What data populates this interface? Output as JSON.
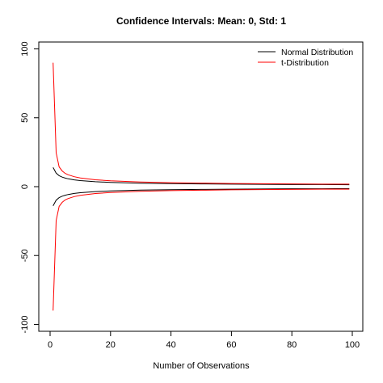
{
  "chart_data": {
    "type": "line",
    "title": "Confidence Intervals: Mean: 0, Std: 1",
    "xlabel": "Number of Observations",
    "ylabel": "",
    "xlim": [
      0,
      100
    ],
    "ylim": [
      -105,
      105
    ],
    "x_ticks": [
      0,
      20,
      40,
      60,
      80,
      100
    ],
    "y_ticks": [
      -100,
      -50,
      0,
      50,
      100
    ],
    "legend": {
      "placement": "top-right",
      "entries": [
        {
          "label": "Normal Distribution",
          "color": "#000000"
        },
        {
          "label": "t-Distribution",
          "color": "#ff0000"
        }
      ]
    },
    "x": [
      1,
      2,
      3,
      4,
      5,
      6,
      8,
      10,
      15,
      20,
      30,
      40,
      50,
      60,
      70,
      80,
      90,
      99
    ],
    "series": [
      {
        "name": "Normal Distribution upper",
        "color": "#000000",
        "values": [
          13.9,
          9.8,
          8.0,
          6.9,
          6.2,
          5.7,
          4.9,
          4.4,
          3.6,
          3.1,
          2.5,
          2.2,
          2.0,
          1.8,
          1.7,
          1.5,
          1.5,
          1.4
        ]
      },
      {
        "name": "Normal Distribution lower",
        "color": "#000000",
        "values": [
          -13.9,
          -9.8,
          -8.0,
          -6.9,
          -6.2,
          -5.7,
          -4.9,
          -4.4,
          -3.6,
          -3.1,
          -2.5,
          -2.2,
          -2.0,
          -1.8,
          -1.7,
          -1.5,
          -1.5,
          -1.4
        ]
      },
      {
        "name": "t-Distribution upper",
        "color": "#ff0000",
        "values": [
          90.0,
          24.6,
          14.3,
          11.4,
          9.6,
          8.6,
          7.2,
          6.3,
          5.0,
          4.3,
          3.4,
          2.9,
          2.6,
          2.3,
          2.1,
          2.0,
          1.8,
          1.8
        ]
      },
      {
        "name": "t-Distribution lower",
        "color": "#ff0000",
        "values": [
          -90.0,
          -24.6,
          -14.3,
          -11.4,
          -9.6,
          -8.6,
          -7.2,
          -6.3,
          -5.0,
          -4.3,
          -3.4,
          -2.9,
          -2.6,
          -2.3,
          -2.1,
          -2.0,
          -1.8,
          -1.8
        ]
      }
    ]
  }
}
